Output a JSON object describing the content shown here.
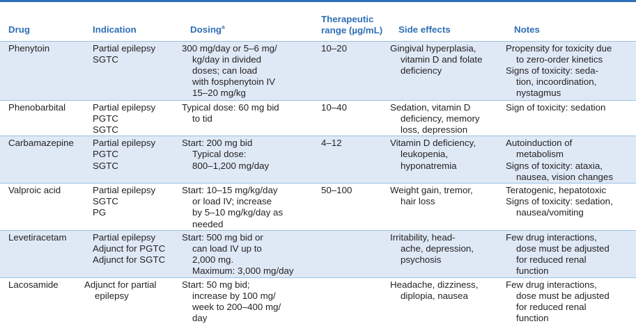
{
  "table": {
    "headers": {
      "drug": "Drug",
      "indication": "Indication",
      "dosing": "Dosing",
      "dosing_sup": "a",
      "therapeutic": "Therapeutic\nrange (µg/mL)",
      "side_effects": "Side effects",
      "notes": "Notes"
    },
    "rows": [
      {
        "drug": "Phenytoin",
        "indication": "Partial epilepsy\nSGTC",
        "dosing": "300 mg/day or 5–6 mg/\nkg/day in divided\ndoses; can load\nwith fosphenytoin IV\n15–20 mg/kg",
        "range": "10–20",
        "side_effects": "Gingival hyperplasia,\nvitamin D and folate\ndeficiency",
        "notes": [
          "Propensity for toxicity due\nto zero-order kinetics",
          "Signs of toxicity: seda-\ntion, incoordination,\nnystagmus"
        ]
      },
      {
        "drug": "Phenobarbital",
        "indication": "Partial epilepsy\nPGTC\nSGTC",
        "dosing": "Typical dose: 60 mg bid\nto tid",
        "range": "10–40",
        "side_effects": "Sedation, vitamin D\ndeficiency, memory\nloss, depression",
        "notes": [
          "Sign of toxicity: sedation"
        ]
      },
      {
        "drug": "Carbamazepine",
        "indication": "Partial epilepsy\nPGTC\nSGTC",
        "dosing": "Start: 200 mg bid\nTypical dose:\n800–1,200 mg/day",
        "range": "4–12",
        "side_effects": "Vitamin D deficiency,\nleukopenia,\nhyponatremia",
        "notes": [
          "Autoinduction of\nmetabolism",
          "Signs of toxicity: ataxia,\nnausea, vision changes"
        ]
      },
      {
        "drug": "Valproic acid",
        "indication": "Partial epilepsy\nSGTC\nPG",
        "dosing": "Start: 10–15 mg/kg/day\nor load IV; increase\nby 5–10 mg/kg/day as\nneeded",
        "range": "50–100",
        "side_effects": "Weight gain, tremor,\nhair loss",
        "notes": [
          "Teratogenic, hepatotoxic",
          "Signs of toxicity: sedation,\nnausea/vomiting"
        ]
      },
      {
        "drug": "Levetiracetam",
        "indication": "Partial epilepsy\nAdjunct for PGTC\nAdjunct for SGTC",
        "dosing": "Start: 500 mg bid or\ncan load IV up to\n2,000 mg.\nMaximum: 3,000 mg/day",
        "range": "",
        "side_effects": "Irritability, head-\nache, depression,\npsychosis",
        "notes": [
          "Few drug interactions,\ndose must be adjusted\nfor reduced renal\nfunction"
        ]
      },
      {
        "drug": "Lacosamide",
        "indication": "Adjunct for partial\nepilepsy",
        "dosing": "Start: 50 mg bid;\nincrease by 100 mg/\nweek to 200–400 mg/\nday",
        "range": "",
        "side_effects": "Headache, dizziness,\ndiplopia, nausea",
        "notes": [
          "Few drug interactions,\ndose must be adjusted\nfor reduced renal\nfunction"
        ]
      }
    ]
  },
  "colors": {
    "header_text": "#2f6fb7",
    "rule": "#2f6fb7",
    "stripe": "#dfe9f6",
    "row_divider": "#9bbfe3",
    "body_text": "#231f20"
  }
}
